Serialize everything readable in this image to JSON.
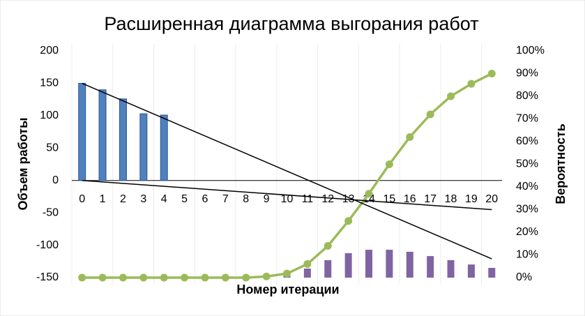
{
  "chart_data": {
    "type": "combo",
    "title": "Расширенная диаграмма выгорания работ",
    "x_label": "Номер итерации",
    "y_label": "Объем работы",
    "y2_label": "Вероятность",
    "categories": [
      "0",
      "1",
      "2",
      "3",
      "4",
      "5",
      "6",
      "7",
      "8",
      "9",
      "10",
      "11",
      "12",
      "13",
      "14",
      "15",
      "16",
      "17",
      "18",
      "19",
      "20"
    ],
    "ylim": [
      -150,
      200
    ],
    "yticks": [
      -150,
      -100,
      -50,
      0,
      50,
      100,
      150,
      200
    ],
    "y2lim": [
      0,
      100
    ],
    "y2ticks": [
      {
        "value": 0,
        "label": "0%"
      },
      {
        "value": 10,
        "label": "10%"
      },
      {
        "value": 20,
        "label": "20%"
      },
      {
        "value": 30,
        "label": "30%"
      },
      {
        "value": 40,
        "label": "40%"
      },
      {
        "value": 50,
        "label": "50%"
      },
      {
        "value": 60,
        "label": "60%"
      },
      {
        "value": 70,
        "label": "70%"
      },
      {
        "value": 80,
        "label": "80%"
      },
      {
        "value": 90,
        "label": "90%"
      },
      {
        "value": 100,
        "label": "100%"
      }
    ],
    "series": [
      {
        "type": "bar",
        "color": "#4f81bd",
        "values": [
          150,
          140,
          126,
          103,
          101,
          null,
          null,
          null,
          null,
          null,
          null,
          null,
          null,
          null,
          null,
          null,
          null,
          null,
          null,
          null,
          null
        ]
      },
      {
        "type": "bar",
        "color": "#8064a2",
        "axis": "y2",
        "values": [
          null,
          null,
          null,
          null,
          null,
          null,
          null,
          null,
          null,
          null,
          1,
          4,
          7.7,
          10.8,
          12.3,
          12.3,
          11.4,
          9.5,
          7.7,
          5.8,
          4.3
        ]
      },
      {
        "type": "line",
        "color": "#9bbb59",
        "axis": "y2",
        "values": [
          0,
          0,
          0,
          0,
          0,
          0,
          0,
          0,
          0,
          0.5,
          1.8,
          6,
          14,
          25,
          37,
          50,
          62,
          72,
          80,
          85.5,
          90
        ]
      }
    ],
    "trendlines": [
      {
        "x": [
          0,
          20
        ],
        "y": [
          150,
          -121
        ]
      },
      {
        "x": [
          0,
          20
        ],
        "y": [
          0,
          -45
        ]
      }
    ]
  }
}
